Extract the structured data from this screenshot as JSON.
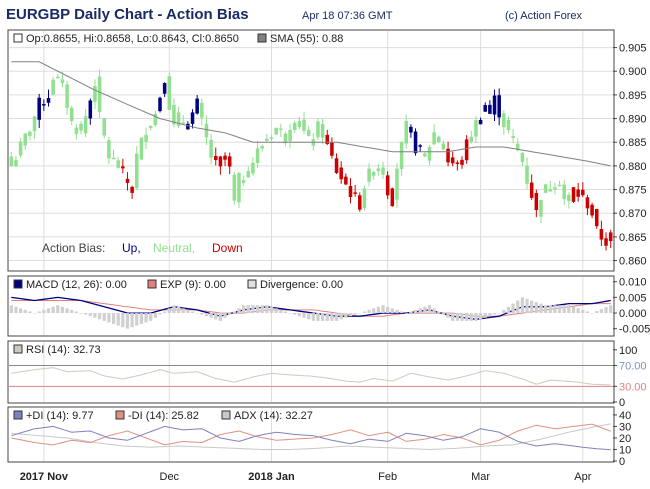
{
  "header": {
    "title": "EURGBP Daily Chart - Action Bias",
    "timestamp": "Apr 18 07:36 GMT",
    "copyright": "(c) Action Forex"
  },
  "colors": {
    "up": "#000080",
    "neutral": "#90e090",
    "down": "#cc0000",
    "sma": "#808080",
    "macd": "#000080",
    "exp": "#e08080",
    "divergence": "#d0d0d0",
    "rsi": "#d0c8c0",
    "plus_di": "#8080c0",
    "minus_di": "#e09080",
    "adx": "#c8c8c8"
  },
  "chart_data": [
    {
      "type": "candlestick",
      "panel": "price",
      "legend": {
        "ohlc": "Op:0.8655, Hi:0.8658, Lo:0.8643, Cl:0.8650",
        "sma": "SMA (55): 0.88"
      },
      "bias_legend": {
        "label": "Action Bias:",
        "up": "Up,",
        "neutral": "Neutral,",
        "down": "Down"
      },
      "yticks": [
        "0.905",
        "0.900",
        "0.895",
        "0.890",
        "0.885",
        "0.880",
        "0.875",
        "0.870",
        "0.865",
        "0.860"
      ],
      "ylim": [
        0.858,
        0.9085
      ],
      "anchors": [
        [
          0,
          0.88,
          "n"
        ],
        [
          4,
          0.888,
          "n"
        ],
        [
          6,
          0.893,
          "u"
        ],
        [
          8,
          0.895,
          "u"
        ],
        [
          9,
          0.899,
          "n"
        ],
        [
          11,
          0.897,
          "n"
        ],
        [
          13,
          0.889,
          "n"
        ],
        [
          15,
          0.887,
          "n"
        ],
        [
          17,
          0.894,
          "u"
        ],
        [
          18,
          0.898,
          "n"
        ],
        [
          19,
          0.89,
          "n"
        ],
        [
          21,
          0.882,
          "n"
        ],
        [
          23,
          0.88,
          "n"
        ],
        [
          24,
          0.878,
          "d"
        ],
        [
          26,
          0.875,
          "d"
        ],
        [
          27,
          0.882,
          "n"
        ],
        [
          29,
          0.888,
          "n"
        ],
        [
          31,
          0.891,
          "n"
        ],
        [
          32,
          0.895,
          "u"
        ],
        [
          33,
          0.899,
          "u"
        ],
        [
          34,
          0.893,
          "n"
        ],
        [
          35,
          0.888,
          "n"
        ],
        [
          36,
          0.89,
          "n"
        ],
        [
          38,
          0.889,
          "u"
        ],
        [
          40,
          0.893,
          "u"
        ],
        [
          41,
          0.889,
          "n"
        ],
        [
          43,
          0.882,
          "n"
        ],
        [
          44,
          0.88,
          "d"
        ],
        [
          46,
          0.882,
          "d"
        ],
        [
          47,
          0.879,
          "d"
        ],
        [
          48,
          0.872,
          "n"
        ],
        [
          49,
          0.877,
          "n"
        ],
        [
          51,
          0.879,
          "n"
        ],
        [
          53,
          0.883,
          "n"
        ],
        [
          55,
          0.886,
          "n"
        ],
        [
          57,
          0.888,
          "n"
        ],
        [
          59,
          0.886,
          "n"
        ],
        [
          60,
          0.889,
          "n"
        ],
        [
          62,
          0.889,
          "n"
        ],
        [
          64,
          0.885,
          "n"
        ],
        [
          66,
          0.888,
          "n"
        ],
        [
          67,
          0.887,
          "n"
        ],
        [
          68,
          0.884,
          "d"
        ],
        [
          70,
          0.879,
          "d"
        ],
        [
          72,
          0.876,
          "d"
        ],
        [
          74,
          0.873,
          "d"
        ],
        [
          75,
          0.872,
          "d"
        ],
        [
          76,
          0.876,
          "n"
        ],
        [
          78,
          0.88,
          "n"
        ],
        [
          80,
          0.879,
          "n"
        ],
        [
          81,
          0.875,
          "d"
        ],
        [
          82,
          0.873,
          "d"
        ],
        [
          83,
          0.88,
          "n"
        ],
        [
          84,
          0.884,
          "n"
        ],
        [
          85,
          0.888,
          "n"
        ],
        [
          86,
          0.887,
          "u"
        ],
        [
          87,
          0.884,
          "u"
        ],
        [
          89,
          0.882,
          "n"
        ],
        [
          91,
          0.887,
          "n"
        ],
        [
          93,
          0.884,
          "n"
        ],
        [
          94,
          0.881,
          "d"
        ],
        [
          96,
          0.88,
          "d"
        ],
        [
          97,
          0.882,
          "d"
        ],
        [
          99,
          0.887,
          "n"
        ],
        [
          101,
          0.891,
          "u"
        ],
        [
          102,
          0.893,
          "u"
        ],
        [
          103,
          0.891,
          "u"
        ],
        [
          104,
          0.894,
          "u"
        ],
        [
          106,
          0.889,
          "n"
        ],
        [
          108,
          0.885,
          "n"
        ],
        [
          110,
          0.881,
          "n"
        ],
        [
          111,
          0.877,
          "n"
        ],
        [
          112,
          0.874,
          "d"
        ],
        [
          113,
          0.87,
          "d"
        ],
        [
          114,
          0.874,
          "n"
        ],
        [
          116,
          0.876,
          "n"
        ],
        [
          118,
          0.877,
          "n"
        ],
        [
          119,
          0.873,
          "n"
        ],
        [
          120,
          0.872,
          "n"
        ],
        [
          121,
          0.875,
          "d"
        ],
        [
          122,
          0.874,
          "d"
        ],
        [
          123,
          0.873,
          "d"
        ],
        [
          124,
          0.872,
          "d"
        ],
        [
          125,
          0.87,
          "d"
        ],
        [
          126,
          0.866,
          "d"
        ],
        [
          127,
          0.865,
          "d"
        ],
        [
          128,
          0.864,
          "d"
        ],
        [
          129,
          0.865,
          "d"
        ]
      ],
      "sma_points": [
        [
          0,
          0.902
        ],
        [
          6,
          0.902
        ],
        [
          12,
          0.899
        ],
        [
          18,
          0.896
        ],
        [
          25,
          0.893
        ],
        [
          32,
          0.89
        ],
        [
          40,
          0.888
        ],
        [
          46,
          0.887
        ],
        [
          52,
          0.885
        ],
        [
          58,
          0.885
        ],
        [
          64,
          0.885
        ],
        [
          70,
          0.885
        ],
        [
          76,
          0.884
        ],
        [
          82,
          0.883
        ],
        [
          88,
          0.883
        ],
        [
          94,
          0.883
        ],
        [
          100,
          0.884
        ],
        [
          106,
          0.884
        ],
        [
          112,
          0.883
        ],
        [
          118,
          0.882
        ],
        [
          124,
          0.881
        ],
        [
          129,
          0.88
        ]
      ]
    },
    {
      "type": "line",
      "panel": "macd",
      "legend": {
        "macd": "MACD (12, 26): 0.00",
        "exp": "EXP (9): 0.00",
        "divergence": "Divergence: 0.00"
      },
      "yticks": [
        "0.010",
        "0.005",
        "0.000",
        "-0.005"
      ],
      "ylim": [
        -0.007,
        0.0115
      ],
      "macd": [
        [
          0,
          0.005
        ],
        [
          5,
          0.004
        ],
        [
          10,
          0.005
        ],
        [
          15,
          0.004
        ],
        [
          20,
          0.002
        ],
        [
          25,
          0.0
        ],
        [
          30,
          0.0
        ],
        [
          35,
          0.002
        ],
        [
          40,
          0.001
        ],
        [
          45,
          -0.001
        ],
        [
          50,
          0.001
        ],
        [
          55,
          0.002
        ],
        [
          60,
          0.001
        ],
        [
          65,
          0.0
        ],
        [
          70,
          -0.001
        ],
        [
          75,
          -0.001
        ],
        [
          80,
          0.0
        ],
        [
          85,
          0.0
        ],
        [
          90,
          0.001
        ],
        [
          95,
          -0.001
        ],
        [
          100,
          -0.002
        ],
        [
          105,
          -0.001
        ],
        [
          110,
          0.002
        ],
        [
          115,
          0.002
        ],
        [
          120,
          0.003
        ],
        [
          125,
          0.003
        ],
        [
          129,
          0.004
        ]
      ],
      "exp": [
        [
          0,
          0.004
        ],
        [
          5,
          0.004
        ],
        [
          10,
          0.004
        ],
        [
          15,
          0.004
        ],
        [
          20,
          0.003
        ],
        [
          25,
          0.002
        ],
        [
          30,
          0.001
        ],
        [
          35,
          0.001
        ],
        [
          40,
          0.001
        ],
        [
          45,
          0.0
        ],
        [
          50,
          0.0
        ],
        [
          55,
          0.001
        ],
        [
          60,
          0.001
        ],
        [
          65,
          0.001
        ],
        [
          70,
          0.0
        ],
        [
          75,
          -0.001
        ],
        [
          80,
          -0.001
        ],
        [
          85,
          0.0
        ],
        [
          90,
          0.0
        ],
        [
          95,
          0.0
        ],
        [
          100,
          -0.001
        ],
        [
          105,
          -0.001
        ],
        [
          110,
          0.0
        ],
        [
          115,
          0.001
        ],
        [
          120,
          0.002
        ],
        [
          125,
          0.003
        ],
        [
          129,
          0.003
        ]
      ]
    },
    {
      "type": "line",
      "panel": "rsi",
      "legend": {
        "rsi": "RSI (14): 32.73"
      },
      "yticks": [
        "100",
        "70.00",
        "30.00",
        "0"
      ],
      "levels": [
        70,
        30
      ],
      "ylim": [
        0,
        115
      ],
      "rsi": [
        [
          0,
          55
        ],
        [
          5,
          62
        ],
        [
          9,
          66
        ],
        [
          12,
          58
        ],
        [
          17,
          60
        ],
        [
          20,
          50
        ],
        [
          24,
          44
        ],
        [
          28,
          52
        ],
        [
          32,
          62
        ],
        [
          35,
          55
        ],
        [
          40,
          58
        ],
        [
          44,
          45
        ],
        [
          48,
          38
        ],
        [
          52,
          48
        ],
        [
          56,
          55
        ],
        [
          60,
          52
        ],
        [
          64,
          50
        ],
        [
          68,
          46
        ],
        [
          72,
          40
        ],
        [
          75,
          38
        ],
        [
          78,
          45
        ],
        [
          82,
          40
        ],
        [
          86,
          55
        ],
        [
          90,
          48
        ],
        [
          94,
          42
        ],
        [
          98,
          50
        ],
        [
          102,
          60
        ],
        [
          106,
          55
        ],
        [
          110,
          44
        ],
        [
          113,
          34
        ],
        [
          116,
          42
        ],
        [
          119,
          40
        ],
        [
          122,
          38
        ],
        [
          125,
          34
        ],
        [
          129,
          32.73
        ]
      ]
    },
    {
      "type": "line",
      "panel": "dmi",
      "legend": {
        "plus_di": "+DI (14): 9.77",
        "minus_di": "-DI (14): 25.82",
        "adx": "ADX (14): 32.27"
      },
      "yticks": [
        "40",
        "30",
        "20",
        "10",
        "0"
      ],
      "ylim": [
        0,
        46
      ],
      "plus_di": [
        [
          0,
          22
        ],
        [
          5,
          28
        ],
        [
          9,
          30
        ],
        [
          13,
          25
        ],
        [
          17,
          26
        ],
        [
          21,
          20
        ],
        [
          25,
          18
        ],
        [
          29,
          24
        ],
        [
          33,
          30
        ],
        [
          37,
          27
        ],
        [
          41,
          28
        ],
        [
          45,
          20
        ],
        [
          49,
          17
        ],
        [
          53,
          22
        ],
        [
          57,
          25
        ],
        [
          61,
          23
        ],
        [
          65,
          22
        ],
        [
          69,
          18
        ],
        [
          73,
          15
        ],
        [
          77,
          19
        ],
        [
          81,
          17
        ],
        [
          85,
          24
        ],
        [
          89,
          22
        ],
        [
          93,
          18
        ],
        [
          97,
          21
        ],
        [
          101,
          28
        ],
        [
          105,
          25
        ],
        [
          109,
          17
        ],
        [
          113,
          13
        ],
        [
          117,
          15
        ],
        [
          121,
          13
        ],
        [
          125,
          11
        ],
        [
          129,
          9.77
        ]
      ],
      "minus_di": [
        [
          0,
          20
        ],
        [
          5,
          16
        ],
        [
          9,
          14
        ],
        [
          13,
          18
        ],
        [
          17,
          16
        ],
        [
          21,
          22
        ],
        [
          25,
          26
        ],
        [
          29,
          20
        ],
        [
          33,
          14
        ],
        [
          37,
          17
        ],
        [
          41,
          16
        ],
        [
          45,
          23
        ],
        [
          49,
          26
        ],
        [
          53,
          21
        ],
        [
          57,
          18
        ],
        [
          61,
          19
        ],
        [
          65,
          20
        ],
        [
          69,
          23
        ],
        [
          73,
          27
        ],
        [
          77,
          22
        ],
        [
          81,
          25
        ],
        [
          85,
          17
        ],
        [
          89,
          19
        ],
        [
          93,
          23
        ],
        [
          97,
          20
        ],
        [
          101,
          14
        ],
        [
          105,
          18
        ],
        [
          109,
          26
        ],
        [
          113,
          31
        ],
        [
          117,
          28
        ],
        [
          121,
          30
        ],
        [
          125,
          32
        ],
        [
          129,
          25.82
        ]
      ],
      "adx": [
        [
          0,
          24
        ],
        [
          6,
          22
        ],
        [
          12,
          20
        ],
        [
          18,
          16
        ],
        [
          24,
          13
        ],
        [
          30,
          12
        ],
        [
          36,
          13
        ],
        [
          42,
          12
        ],
        [
          48,
          11
        ],
        [
          54,
          10
        ],
        [
          60,
          10
        ],
        [
          66,
          11
        ],
        [
          72,
          13
        ],
        [
          78,
          12
        ],
        [
          84,
          11
        ],
        [
          90,
          10
        ],
        [
          96,
          11
        ],
        [
          102,
          13
        ],
        [
          108,
          14
        ],
        [
          114,
          19
        ],
        [
          120,
          25
        ],
        [
          126,
          30
        ],
        [
          129,
          32.27
        ]
      ]
    },
    {
      "type": "axis",
      "panel": "time",
      "xticks": [
        {
          "bar": 7,
          "label": "2017 Nov",
          "bold": true
        },
        {
          "bar": 34,
          "label": "Dec",
          "bold": false
        },
        {
          "bar": 56,
          "label": "2018 Jan",
          "bold": true
        },
        {
          "bar": 81,
          "label": "Feb",
          "bold": false
        },
        {
          "bar": 101,
          "label": "Mar",
          "bold": false
        },
        {
          "bar": 123,
          "label": "Apr",
          "bold": false
        }
      ],
      "bar_count": 130
    }
  ]
}
